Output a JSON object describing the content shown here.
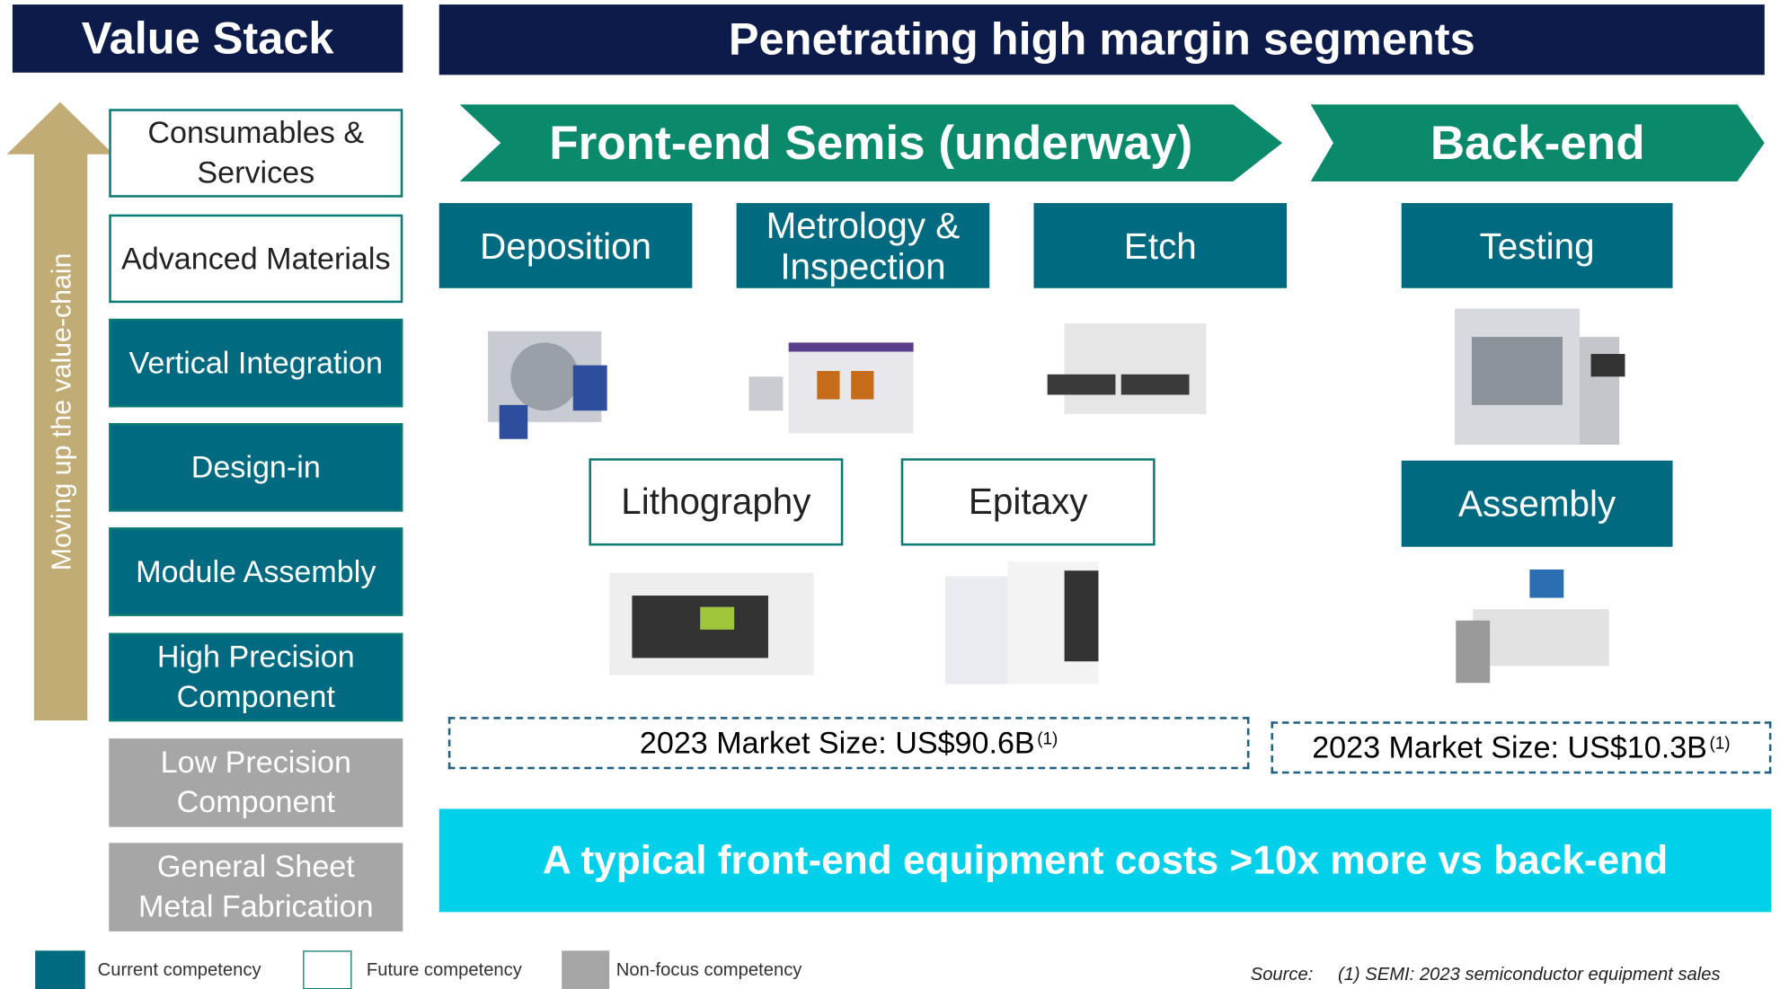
{
  "header": {
    "left_title": "Value Stack",
    "right_title": "Penetrating high margin segments"
  },
  "value_stack": {
    "axis_label": "Moving up the value-chain",
    "items": [
      "Consumables & Services",
      "Advanced Materials",
      "Vertical Integration",
      "Design-in",
      "Module Assembly",
      "High Precision Component",
      "Low Precision Component",
      "General Sheet Metal Fabrication"
    ]
  },
  "front_end": {
    "title": "Front-end Semis (underway)",
    "segments": [
      "Deposition",
      "Metrology & Inspection",
      "Etch",
      "Lithography",
      "Epitaxy"
    ],
    "market_size": "2023 Market Size: US$90.6B",
    "market_note": "(1)"
  },
  "back_end": {
    "title": "Back-end",
    "segments": [
      "Testing",
      "Assembly"
    ],
    "market_size": "2023 Market Size: US$10.3B",
    "market_note": "(1)"
  },
  "banner": "A typical front-end equipment costs >10x more vs back-end",
  "legend": [
    "Current competency",
    "Future competency",
    "Non-focus competency"
  ],
  "source": {
    "label": "Source:",
    "text": "(1) SEMI: 2023 semiconductor equipment sales"
  }
}
